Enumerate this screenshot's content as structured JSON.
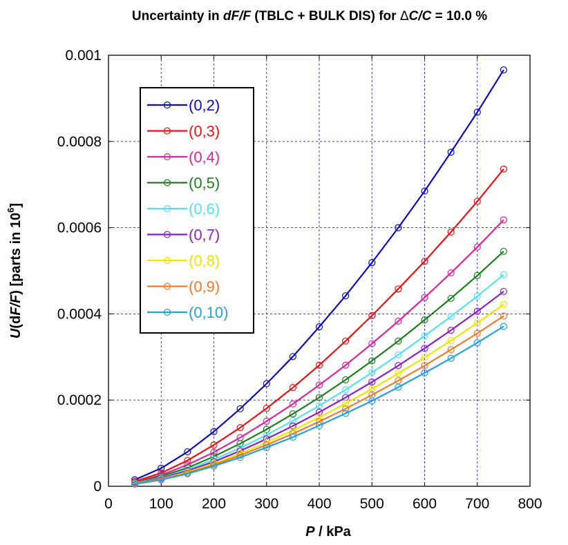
{
  "chart_data": {
    "type": "line",
    "title": {
      "part1": "Uncertainty in ",
      "part2": "dF",
      "part3": "/",
      "part4": "F",
      "part5": " (TBLC + BULK DIS) for ",
      "part6": "Δ",
      "part7": "C",
      "part8": "/",
      "part9": "C",
      "part10": " = 10.0 %"
    },
    "xlabel": {
      "var": "P",
      "rest": " / kPa"
    },
    "ylabel": {
      "u": "U",
      "open": "(d",
      "F1": "F",
      "slash": "/",
      "F2": "F",
      "close": ") [parts in 10",
      "exp": "6",
      "end": "]"
    },
    "xlim": [
      0,
      800
    ],
    "ylim": [
      0,
      0.001
    ],
    "x_ticks": [
      "0",
      "100",
      "200",
      "300",
      "400",
      "500",
      "600",
      "700",
      "800"
    ],
    "y_ticks": [
      "0",
      "0.0002",
      "0.0004",
      "0.0006",
      "0.0008",
      "0.001"
    ],
    "grid": true,
    "legend_position": "top-left",
    "x": [
      50,
      100,
      150,
      200,
      250,
      300,
      350,
      400,
      450,
      500,
      550,
      600,
      650,
      700,
      750
    ],
    "series": [
      {
        "name": "(0,2)",
        "color": "#0a0ac8",
        "values": [
          1.5e-05,
          4.2e-05,
          8e-05,
          0.000127,
          0.00018,
          0.000238,
          0.000301,
          0.00037,
          0.000442,
          0.000519,
          0.0006,
          0.000685,
          0.000775,
          0.000868,
          0.000966
        ]
      },
      {
        "name": "(0,3)",
        "color": "#ee1111",
        "values": [
          1.1e-05,
          3.1e-05,
          6e-05,
          9.6e-05,
          0.000136,
          0.000181,
          0.000229,
          0.000281,
          0.000337,
          0.000396,
          0.000458,
          0.000522,
          0.00059,
          0.000661,
          0.000736
        ]
      },
      {
        "name": "(0,4)",
        "color": "#e0249a",
        "values": [
          9e-06,
          2.6e-05,
          5e-05,
          7.9e-05,
          0.000113,
          0.000151,
          0.000191,
          0.000235,
          0.000281,
          0.000331,
          0.000383,
          0.000438,
          0.000495,
          0.000555,
          0.000618
        ]
      },
      {
        "name": "(0,5)",
        "color": "#1a7f1a",
        "values": [
          8e-06,
          2.3e-05,
          4.3e-05,
          6.9e-05,
          9.9e-05,
          0.000132,
          0.000168,
          0.000206,
          0.000247,
          0.000291,
          0.000337,
          0.000386,
          0.000436,
          0.000489,
          0.000545
        ]
      },
      {
        "name": "(0,6)",
        "color": "#55e2f0",
        "values": [
          7e-06,
          2e-05,
          3.9e-05,
          6.2e-05,
          8.9e-05,
          0.000119,
          0.000152,
          0.000187,
          0.000224,
          0.000264,
          0.000305,
          0.000349,
          0.000394,
          0.000441,
          0.000491
        ]
      },
      {
        "name": "(0,7)",
        "color": "#8a1fc8",
        "values": [
          6e-06,
          1.9e-05,
          3.6e-05,
          5.7e-05,
          8.2e-05,
          0.00011,
          0.00014,
          0.000172,
          0.000206,
          0.000242,
          0.00028,
          0.00032,
          0.000362,
          0.000406,
          0.000452
        ]
      },
      {
        "name": "(0,8)",
        "color": "#f0e400",
        "values": [
          6e-06,
          1.7e-05,
          3.3e-05,
          5.3e-05,
          7.6e-05,
          0.000102,
          0.00013,
          0.00016,
          0.000192,
          0.000226,
          0.000262,
          0.000299,
          0.000338,
          0.000379,
          0.000422
        ]
      },
      {
        "name": "(0,9)",
        "color": "#f07a28",
        "values": [
          6e-06,
          1.6e-05,
          3.1e-05,
          5e-05,
          7.2e-05,
          9.6e-05,
          0.000122,
          0.00015,
          0.00018,
          0.000212,
          0.000245,
          0.00028,
          0.000317,
          0.000355,
          0.000395
        ]
      },
      {
        "name": "(0,10)",
        "color": "#22a0e0",
        "values": [
          5e-06,
          1.5e-05,
          2.9e-05,
          4.7e-05,
          6.7e-05,
          9e-05,
          0.000114,
          0.000141,
          0.000169,
          0.000198,
          0.00023,
          0.000263,
          0.000297,
          0.000333,
          0.000371
        ]
      }
    ]
  }
}
